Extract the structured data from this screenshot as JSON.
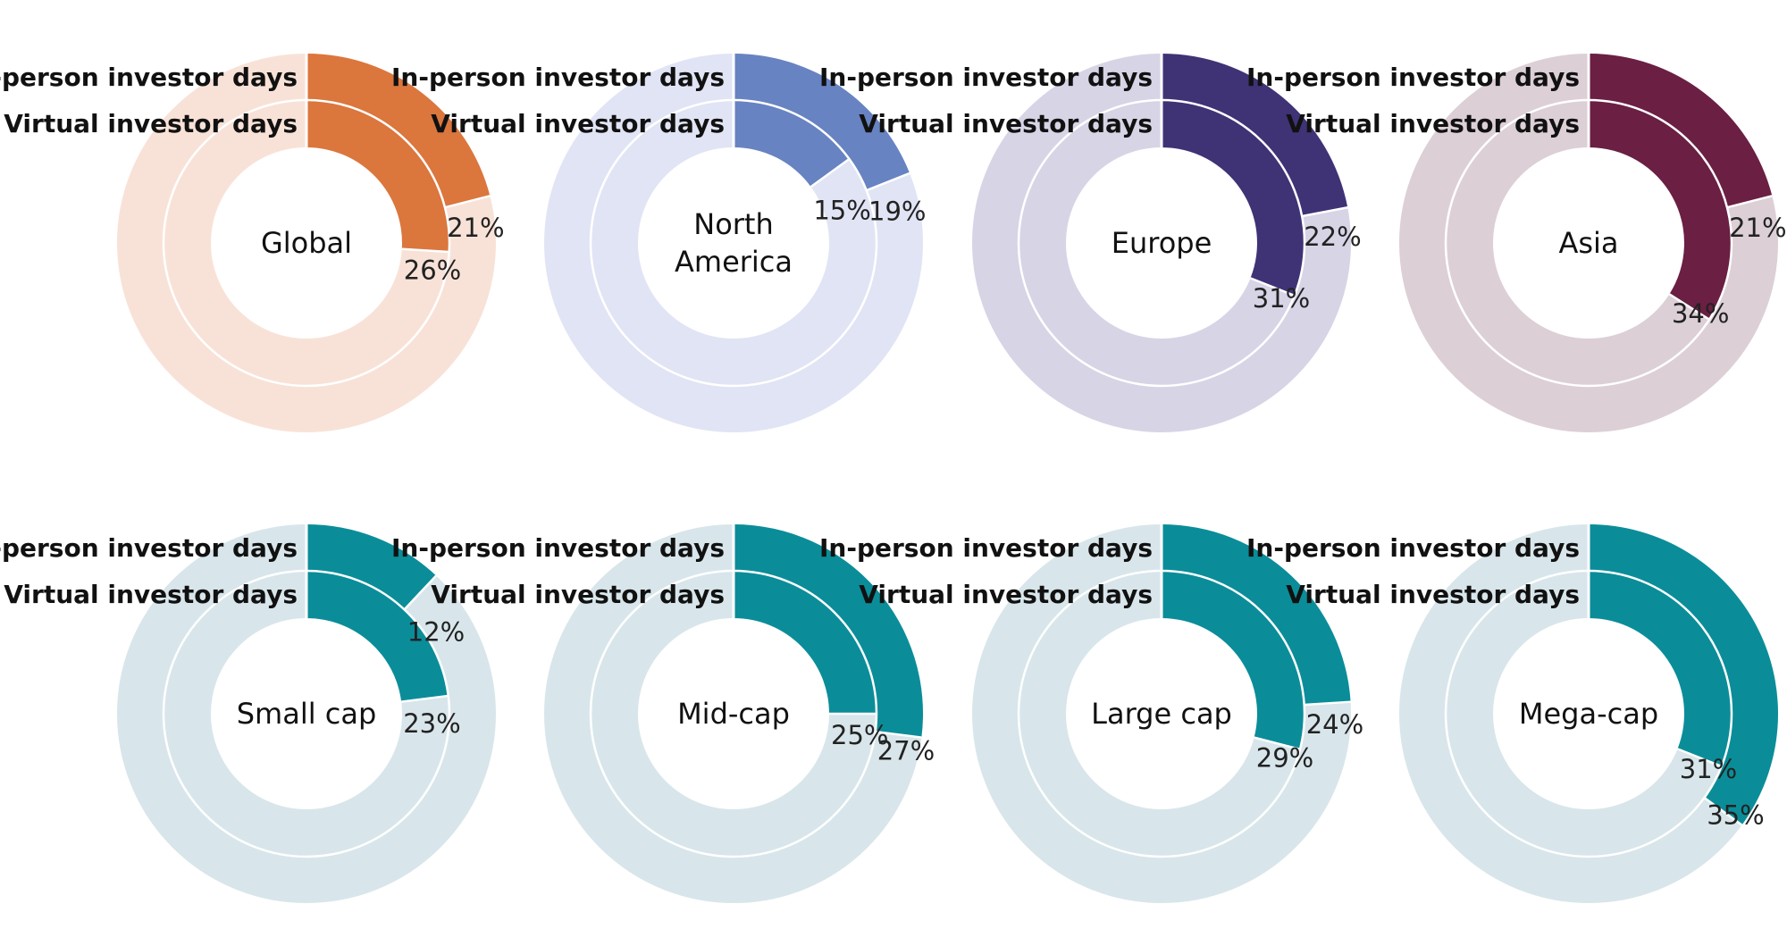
{
  "series_names": {
    "outer": "In-person investor days",
    "inner": "Virtual investor days"
  },
  "chart_data": [
    {
      "type": "pie",
      "title_lines": [
        "Global"
      ],
      "series": [
        {
          "name": "In-person investor days",
          "value_pct": 21,
          "label": "21%"
        },
        {
          "name": "Virtual investor days",
          "value_pct": 26,
          "label": "26%"
        }
      ],
      "colors": {
        "fill": "#DB763D",
        "track": "#F8E2D7"
      }
    },
    {
      "type": "pie",
      "title_lines": [
        "North",
        "America"
      ],
      "series": [
        {
          "name": "In-person investor days",
          "value_pct": 19,
          "label": "19%"
        },
        {
          "name": "Virtual investor days",
          "value_pct": 15,
          "label": "15%"
        }
      ],
      "colors": {
        "fill": "#6883C2",
        "track": "#E1E4F4"
      }
    },
    {
      "type": "pie",
      "title_lines": [
        "Europe"
      ],
      "series": [
        {
          "name": "In-person investor days",
          "value_pct": 22,
          "label": "22%"
        },
        {
          "name": "Virtual investor days",
          "value_pct": 31,
          "label": "31%"
        }
      ],
      "colors": {
        "fill": "#3F3275",
        "track": "#D7D4E6"
      }
    },
    {
      "type": "pie",
      "title_lines": [
        "Asia"
      ],
      "series": [
        {
          "name": "In-person investor days",
          "value_pct": 21,
          "label": "21%"
        },
        {
          "name": "Virtual investor days",
          "value_pct": 34,
          "label": "34%"
        }
      ],
      "colors": {
        "fill": "#6A1F43",
        "track": "#DCCFD6"
      }
    },
    {
      "type": "pie",
      "title_lines": [
        "Small cap"
      ],
      "series": [
        {
          "name": "In-person investor days",
          "value_pct": 12,
          "label": "12%"
        },
        {
          "name": "Virtual investor days",
          "value_pct": 23,
          "label": "23%"
        }
      ],
      "colors": {
        "fill": "#0A8D99",
        "track": "#D8E6EB"
      }
    },
    {
      "type": "pie",
      "title_lines": [
        "Mid-cap"
      ],
      "series": [
        {
          "name": "In-person investor days",
          "value_pct": 27,
          "label": "27%"
        },
        {
          "name": "Virtual investor days",
          "value_pct": 25,
          "label": "25%"
        }
      ],
      "colors": {
        "fill": "#0A8D99",
        "track": "#D8E6EB"
      }
    },
    {
      "type": "pie",
      "title_lines": [
        "Large cap"
      ],
      "series": [
        {
          "name": "In-person investor days",
          "value_pct": 24,
          "label": "24%"
        },
        {
          "name": "Virtual investor days",
          "value_pct": 29,
          "label": "29%"
        }
      ],
      "colors": {
        "fill": "#0A8D99",
        "track": "#D8E6EB"
      }
    },
    {
      "type": "pie",
      "title_lines": [
        "Mega-cap"
      ],
      "series": [
        {
          "name": "In-person investor days",
          "value_pct": 35,
          "label": "35%"
        },
        {
          "name": "Virtual investor days",
          "value_pct": 31,
          "label": "31%"
        }
      ],
      "colors": {
        "fill": "#0A8D99",
        "track": "#D8E6EB"
      }
    }
  ]
}
